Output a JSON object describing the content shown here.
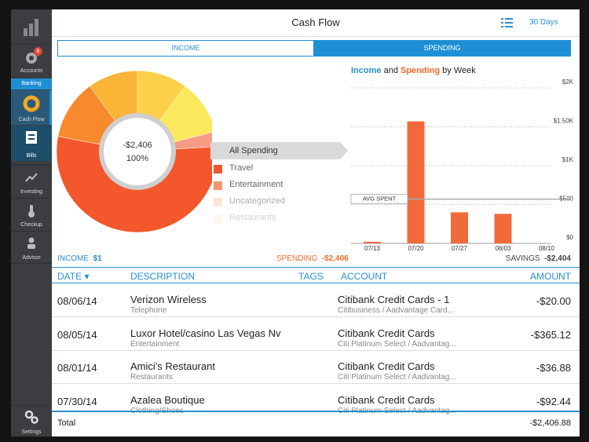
{
  "header": {
    "title": "Cash Flow",
    "range": "30 Days"
  },
  "sidebar": {
    "accounts": {
      "label": "Accounts",
      "badge": "6"
    },
    "section": "Banking",
    "items": [
      "Cash Flow",
      "Bills",
      "Investing",
      "Checkup",
      "Advisor"
    ],
    "settings": "Settings"
  },
  "tabs": [
    "INCOME",
    "SPENDING"
  ],
  "donut_center": {
    "amount": "-$2,406",
    "percent": "100%"
  },
  "spending_legend": {
    "header": "All Spending",
    "items": [
      {
        "name": "Travel",
        "color": "#f0562c"
      },
      {
        "name": "Entertainment",
        "color": "#f6946e"
      },
      {
        "name": "Uncategorized",
        "color": "#fbd2ae"
      },
      {
        "name": "Restaurants",
        "color": "#fde6c4"
      }
    ]
  },
  "chart_title": {
    "income": "Income",
    "and": "and",
    "spending": "Spending",
    "by": "by Week"
  },
  "chart_data": [
    {
      "type": "pie",
      "values": [
        10,
        11,
        3,
        54,
        12,
        10
      ],
      "colors": [
        "#fcd048",
        "#fbe85c",
        "#f79a86",
        "#f4572b",
        "#f78a2c",
        "#fbb436"
      ]
    },
    {
      "type": "bar",
      "categories": [
        "07/13",
        "07/20",
        "07/27",
        "08/03",
        "08/10"
      ],
      "values": [
        20,
        1570,
        400,
        380,
        0
      ],
      "color": "#f26a3b",
      "ylim": [
        0,
        2000
      ],
      "yticks": [
        {
          "value": 0,
          "label": "$0"
        },
        {
          "value": 500,
          "label": "$500"
        },
        {
          "value": 1000,
          "label": "$1K"
        },
        {
          "value": 1500,
          "label": "$1.50K"
        },
        {
          "value": 2000,
          "label": "$2K"
        }
      ],
      "grid": true,
      "average": {
        "label": "AVG SPENT",
        "value": 570
      }
    }
  ],
  "summary": {
    "income": {
      "label": "INCOME",
      "value": "$1"
    },
    "spending": {
      "label": "SPENDING",
      "value": "-$2,406"
    },
    "savings": {
      "label": "SAVINGS",
      "value": "-$2,404"
    }
  },
  "table": {
    "columns": [
      "DATE",
      "DESCRIPTION",
      "TAGS",
      "ACCOUNT",
      "AMOUNT"
    ],
    "rows": [
      {
        "date": "08/06/14",
        "description": "Verizon Wireless",
        "category": "Telephone",
        "account": "Citibank Credit Cards - 1",
        "account_detail": "Citibusiness / Aadvantage Card...",
        "amount": "-$20.00"
      },
      {
        "date": "08/05/14",
        "description": "Luxor Hotel/casino Las Vegas Nv",
        "category": "Entertainment",
        "account": "Citibank Credit Cards",
        "account_detail": "Citi Platinum Select / Aadvantag...",
        "amount": "-$365.12"
      },
      {
        "date": "08/01/14",
        "description": "Amici's Restaurant",
        "category": "Restaurants",
        "account": "Citibank Credit Cards",
        "account_detail": "Citi Platinum Select / Aadvantag...",
        "amount": "-$36.88"
      },
      {
        "date": "07/30/14",
        "description": "Azalea Boutique",
        "category": "Clothing/Shoes",
        "account": "Citibank Credit Cards",
        "account_detail": "Citi Platinum Select / Aadvantag...",
        "amount": "-$92.44"
      }
    ],
    "total": {
      "label": "Total",
      "amount": "-$2,406.88"
    }
  }
}
